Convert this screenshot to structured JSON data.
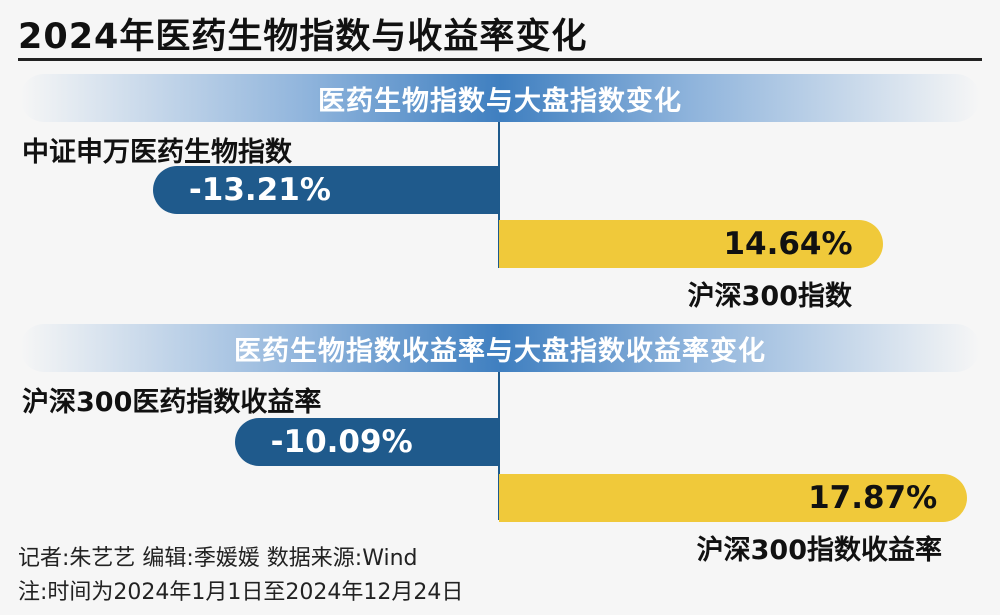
{
  "title": "2024年医药生物指数与收益率变化",
  "chart_data": [
    {
      "type": "bar",
      "title": "医药生物指数与大盘指数变化",
      "categories": [
        "中证申万医药生物指数",
        "沪深300指数"
      ],
      "values": [
        -13.21,
        14.64
      ],
      "value_labels": [
        "-13.21%",
        "14.64%"
      ],
      "colors": [
        "#1f5a8c",
        "#f0c93a"
      ],
      "xlim": [
        -20,
        20
      ]
    },
    {
      "type": "bar",
      "title": "医药生物指数收益率与大盘指数收益率变化",
      "categories": [
        "沪深300医药指数收益率",
        "沪深300指数收益率"
      ],
      "values": [
        -10.09,
        17.87
      ],
      "value_labels": [
        "-10.09%",
        "17.87%"
      ],
      "colors": [
        "#1f5a8c",
        "#f0c93a"
      ],
      "xlim": [
        -20,
        20
      ]
    }
  ],
  "footer": {
    "credits": "记者:朱艺艺  编辑:季媛媛  数据来源:Wind",
    "note": "注:时间为2024年1月1日至2024年12月24日"
  }
}
